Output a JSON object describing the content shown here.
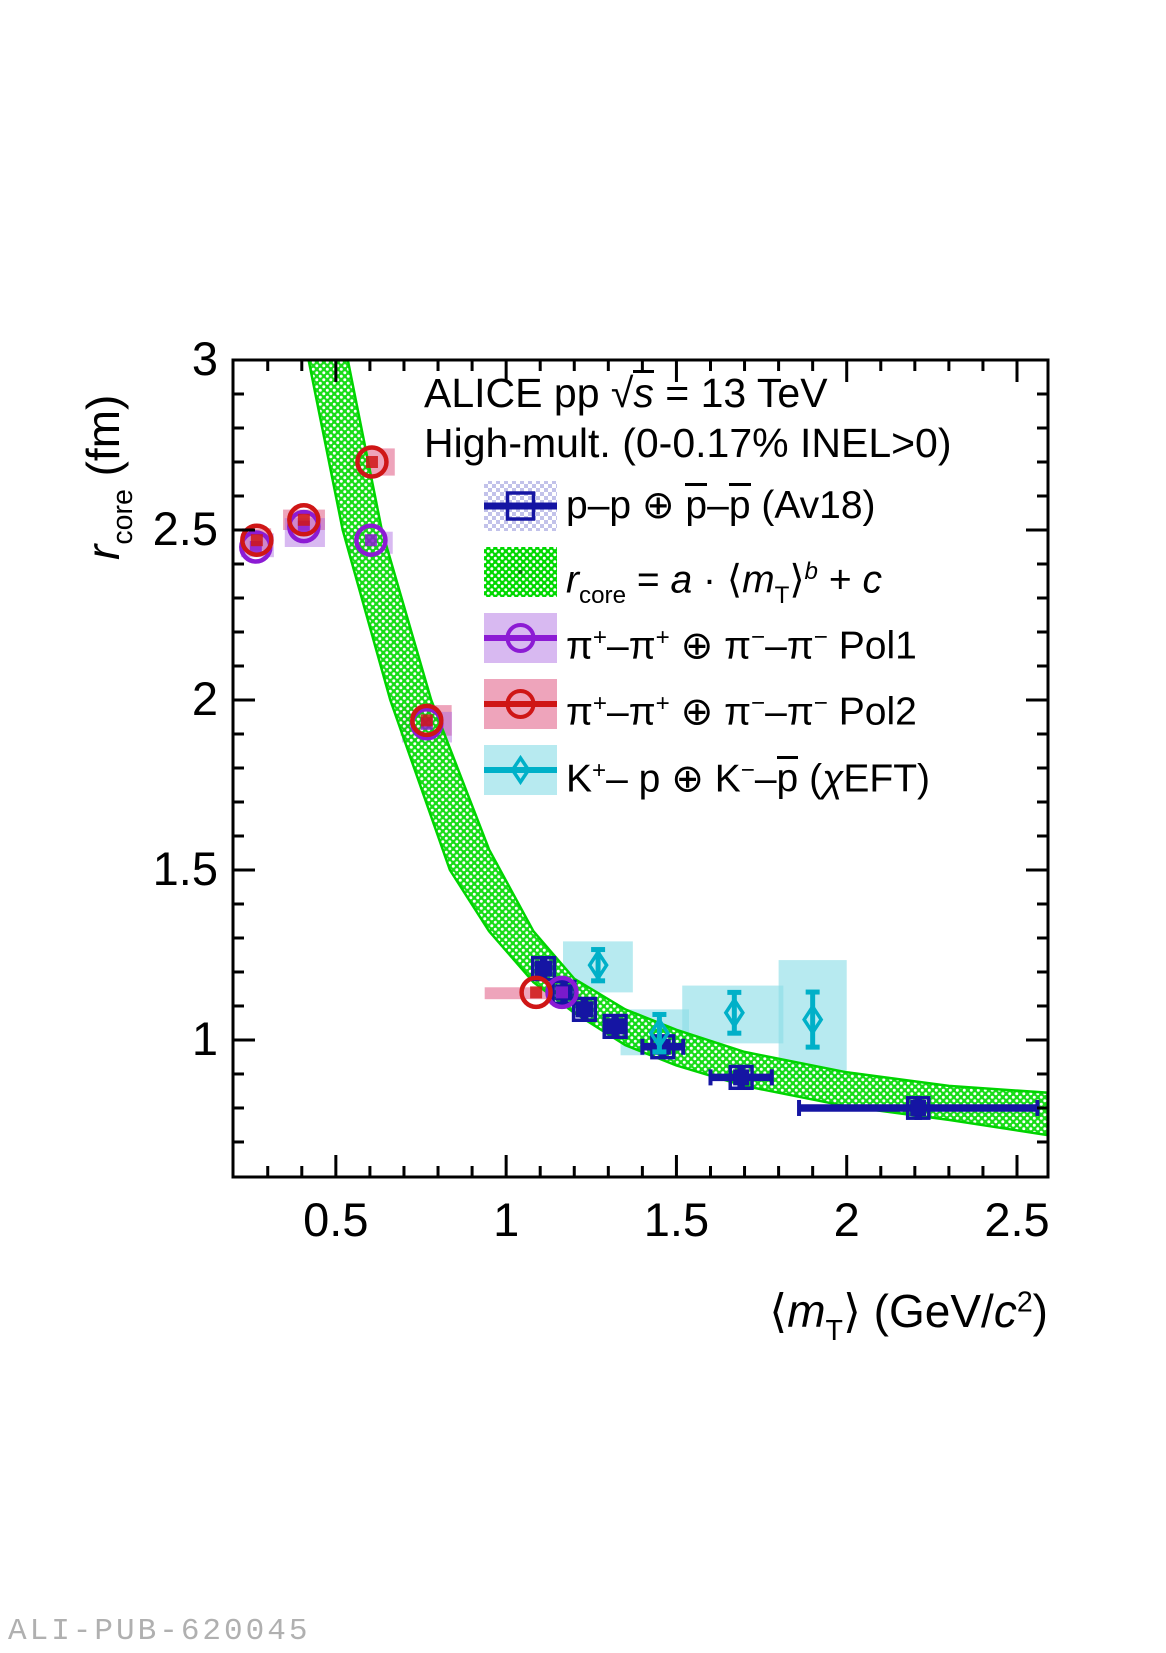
{
  "title_line1": [
    {
      "t": "ALICE pp  "
    },
    {
      "t": "√"
    },
    {
      "t": "s",
      "i": 1,
      "ov": 1
    },
    {
      "t": " = 13 TeV"
    }
  ],
  "title_line2": [
    {
      "t": "High-mult. (0-0.17% INEL>0)"
    }
  ],
  "watermark": "ALI-PUB-620045",
  "legend": {
    "entries": [
      {
        "id": "pp_av18",
        "label": [
          {
            "t": "p–p ⊕ "
          },
          {
            "t": "p",
            "ov": 1
          },
          {
            "t": "–"
          },
          {
            "t": "p",
            "ov": 1
          },
          {
            "t": " (Av18)"
          }
        ]
      },
      {
        "id": "fit_band",
        "label": [
          {
            "t": "r",
            "i": 1
          },
          {
            "t": "core",
            "sub": 1
          },
          {
            "t": " = "
          },
          {
            "t": "a",
            "i": 1
          },
          {
            "t": " · ⟨"
          },
          {
            "t": "m",
            "i": 1
          },
          {
            "t": "T",
            "sub": 1
          },
          {
            "t": "⟩"
          },
          {
            "t": "b",
            "i": 1,
            "sup": 1
          },
          {
            "t": " + "
          },
          {
            "t": "c",
            "i": 1
          }
        ]
      },
      {
        "id": "pion_pol1",
        "label": [
          {
            "t": "π"
          },
          {
            "t": "+",
            "sup": 1
          },
          {
            "t": "–π"
          },
          {
            "t": "+",
            "sup": 1
          },
          {
            "t": " ⊕ π"
          },
          {
            "t": "−",
            "sup": 1
          },
          {
            "t": "–π"
          },
          {
            "t": "−",
            "sup": 1
          },
          {
            "t": " Pol1"
          }
        ]
      },
      {
        "id": "pion_pol2",
        "label": [
          {
            "t": "π"
          },
          {
            "t": "+",
            "sup": 1
          },
          {
            "t": "–π"
          },
          {
            "t": "+",
            "sup": 1
          },
          {
            "t": " ⊕ π"
          },
          {
            "t": "−",
            "sup": 1
          },
          {
            "t": "–π"
          },
          {
            "t": "−",
            "sup": 1
          },
          {
            "t": " Pol2"
          }
        ]
      },
      {
        "id": "kaon_chieft",
        "label": [
          {
            "t": "K"
          },
          {
            "t": "+",
            "sup": 1
          },
          {
            "t": "– p ⊕ K"
          },
          {
            "t": "−",
            "sup": 1
          },
          {
            "t": "–"
          },
          {
            "t": "p",
            "ov": 1
          },
          {
            "t": " ("
          },
          {
            "t": "χ",
            "i": 1
          },
          {
            "t": "EFT)"
          }
        ]
      }
    ]
  },
  "chart_data": {
    "type": "scatter",
    "title": "ALICE pp sqrt(s) = 13 TeV, High-mult. (0-0.17% INEL>0)",
    "xlabel_rich": [
      {
        "t": "⟨"
      },
      {
        "t": "m",
        "i": 1
      },
      {
        "t": "T",
        "sub": 1
      },
      {
        "t": "⟩ (GeV/"
      },
      {
        "t": "c",
        "i": 1
      },
      {
        "t": "2",
        "sup": 1
      },
      {
        "t": ")"
      }
    ],
    "ylabel_rich": [
      {
        "t": "r",
        "i": 1
      },
      {
        "t": "core",
        "sub": 1
      },
      {
        "t": " (fm)"
      }
    ],
    "xlim": [
      0.198,
      2.591
    ],
    "ylim": [
      0.597,
      3.0
    ],
    "x_major_ticks": [
      0.5,
      1,
      1.5,
      2,
      2.5
    ],
    "x_tick_labels": [
      "0.5",
      "1",
      "1.5",
      "2",
      "2.5"
    ],
    "y_major_ticks": [
      1,
      1.5,
      2,
      2.5,
      3
    ],
    "y_tick_labels": [
      "1",
      "1.5",
      "2",
      "2.5",
      "3"
    ],
    "minor_tick_step": 0.1,
    "grid": false,
    "legend_position": "top-right-inside",
    "colors": {
      "pp": "#1515a3",
      "pp_band": "#c2c2ea",
      "fit": "#00d400",
      "pol1": "#8c1bd4",
      "pol1_box": "#a864e0",
      "pol2": "#cf1616",
      "pol2_box": "#e05a84",
      "kaon": "#00b0c8",
      "kaon_box": "#8adde6"
    },
    "series": [
      {
        "name": "pp_av18",
        "marker": "filled-square",
        "color": "#1515a3",
        "points": [
          {
            "m": 1.11,
            "r": 1.21,
            "xerr": 0.02,
            "box_dm": 0.032,
            "box_dr": 0.032
          },
          {
            "m": 1.17,
            "r": 1.14,
            "xerr": 0.02,
            "box_dm": 0.032,
            "box_dr": 0.032
          },
          {
            "m": 1.23,
            "r": 1.09,
            "xerr": 0.02,
            "box_dm": 0.032,
            "box_dr": 0.032
          },
          {
            "m": 1.32,
            "r": 1.04,
            "xerr": 0.025,
            "box_dm": 0.032,
            "box_dr": 0.032
          },
          {
            "m": 1.46,
            "r": 0.98,
            "xerr": 0.06,
            "box_dm": 0.032,
            "box_dr": 0.032
          },
          {
            "m": 1.69,
            "r": 0.89,
            "xerr": 0.09,
            "box_dm": 0.032,
            "box_dr": 0.032
          },
          {
            "m": 2.21,
            "r": 0.8,
            "xerr": 0.35,
            "box_dm": 0.031,
            "box_dr": 0.03
          }
        ]
      },
      {
        "name": "fit_band",
        "marker": "band",
        "color": "#00d400",
        "band_lower": [
          [
            0.42,
            3.0
          ],
          [
            0.52,
            2.5
          ],
          [
            0.66,
            2.0
          ],
          [
            0.835,
            1.5
          ],
          [
            0.95,
            1.32
          ],
          [
            1.08,
            1.17
          ],
          [
            1.2,
            1.08
          ],
          [
            1.35,
            0.985
          ],
          [
            1.5,
            0.925
          ],
          [
            1.7,
            0.865
          ],
          [
            2.0,
            0.805
          ],
          [
            2.3,
            0.765
          ],
          [
            2.591,
            0.72
          ]
        ],
        "band_upper": [
          [
            0.535,
            3.0
          ],
          [
            0.635,
            2.5
          ],
          [
            0.78,
            2.0
          ],
          [
            0.95,
            1.56
          ],
          [
            1.08,
            1.32
          ],
          [
            1.2,
            1.18
          ],
          [
            1.35,
            1.09
          ],
          [
            1.5,
            1.03
          ],
          [
            1.7,
            0.965
          ],
          [
            2.0,
            0.905
          ],
          [
            2.3,
            0.865
          ],
          [
            2.591,
            0.845
          ]
        ]
      },
      {
        "name": "pion_pol1",
        "marker": "open-circle",
        "color": "#8c1bd4",
        "points": [
          {
            "m": 0.265,
            "r": 2.45,
            "box": [
              0.221,
              0.318,
              2.42,
              2.49
            ]
          },
          {
            "m": 0.406,
            "r": 2.51,
            "box": [
              0.35,
              0.468,
              2.45,
              2.535
            ]
          },
          {
            "m": 0.603,
            "r": 2.47,
            "box": [
              0.541,
              0.667,
              2.43,
              2.495
            ]
          },
          {
            "m": 0.767,
            "r": 1.93,
            "box": [
              0.694,
              0.841,
              1.875,
              1.965
            ]
          },
          {
            "m": 1.164,
            "r": 1.14,
            "box": [
              1.128,
              1.225,
              1.12,
              1.16
            ]
          }
        ]
      },
      {
        "name": "pion_pol2",
        "marker": "open-circle",
        "color": "#cf1616",
        "points": [
          {
            "m": 0.268,
            "r": 2.47,
            "box": [
              0.225,
              0.31,
              2.44,
              2.505
            ]
          },
          {
            "m": 0.406,
            "r": 2.53,
            "box": [
              0.345,
              0.468,
              2.5,
              2.56
            ]
          },
          {
            "m": 0.606,
            "r": 2.7,
            "box": [
              0.535,
              0.673,
              2.66,
              2.74
            ]
          },
          {
            "m": 0.767,
            "r": 1.94,
            "box": [
              0.69,
              0.84,
              1.895,
              1.985
            ]
          },
          {
            "m": 1.088,
            "r": 1.14,
            "box": [
              0.937,
              1.128,
              1.12,
              1.155
            ]
          }
        ]
      },
      {
        "name": "kaon_chieft",
        "marker": "open-diamond",
        "color": "#00b0c8",
        "points": [
          {
            "m": 1.27,
            "r": 1.22,
            "yerr": 0.046,
            "box": [
              1.167,
              1.372,
              1.14,
              1.29
            ]
          },
          {
            "m": 1.45,
            "r": 1.02,
            "yerr": 0.055,
            "box": [
              1.336,
              1.537,
              0.955,
              1.09
            ]
          },
          {
            "m": 1.67,
            "r": 1.08,
            "yerr": 0.06,
            "box": [
              1.517,
              1.814,
              0.99,
              1.16
            ]
          },
          {
            "m": 1.9,
            "r": 1.06,
            "yerr": 0.081,
            "box": [
              1.8,
              2.0,
              0.88,
              1.235
            ]
          }
        ]
      }
    ]
  }
}
